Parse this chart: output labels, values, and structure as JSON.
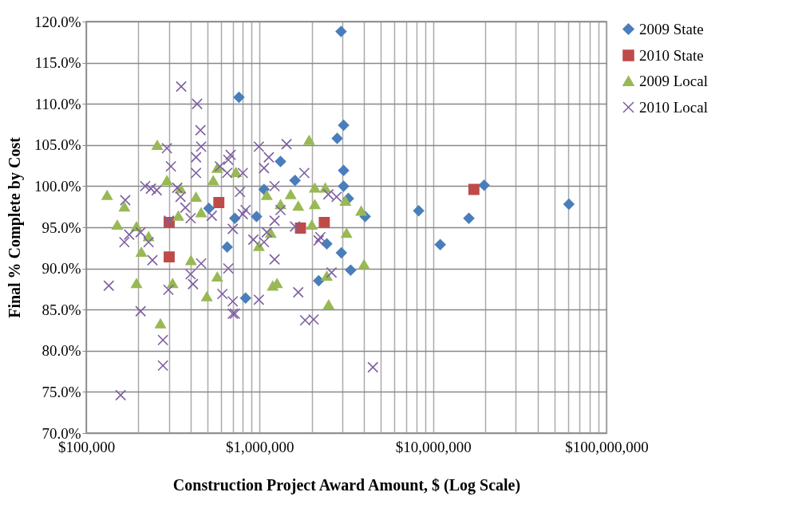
{
  "chart_data": {
    "type": "scatter",
    "xlabel": "Construction Project Award Amount, $ (Log Scale)",
    "ylabel": "Final % Complete by Cost",
    "log": "x",
    "grid": true,
    "legend": "right",
    "xlim": [
      100000,
      100000000
    ],
    "xticks": [
      {
        "value": 100000,
        "label": "$100,000"
      },
      {
        "value": 200000,
        "label": null
      },
      {
        "value": 300000,
        "label": null
      },
      {
        "value": 400000,
        "label": null
      },
      {
        "value": 500000,
        "label": null
      },
      {
        "value": 600000,
        "label": null
      },
      {
        "value": 700000,
        "label": null
      },
      {
        "value": 800000,
        "label": null
      },
      {
        "value": 900000,
        "label": null
      },
      {
        "value": 1000000,
        "label": "$1,000,000"
      },
      {
        "value": 2000000,
        "label": null
      },
      {
        "value": 3000000,
        "label": null
      },
      {
        "value": 4000000,
        "label": null
      },
      {
        "value": 5000000,
        "label": null
      },
      {
        "value": 6000000,
        "label": null
      },
      {
        "value": 7000000,
        "label": null
      },
      {
        "value": 8000000,
        "label": null
      },
      {
        "value": 9000000,
        "label": null
      },
      {
        "value": 10000000,
        "label": "$10,000,000"
      },
      {
        "value": 20000000,
        "label": null
      },
      {
        "value": 30000000,
        "label": null
      },
      {
        "value": 40000000,
        "label": null
      },
      {
        "value": 50000000,
        "label": null
      },
      {
        "value": 60000000,
        "label": null
      },
      {
        "value": 70000000,
        "label": null
      },
      {
        "value": 80000000,
        "label": null
      },
      {
        "value": 90000000,
        "label": null
      },
      {
        "value": 100000000,
        "label": "$100,000,000"
      }
    ],
    "ylim": [
      70,
      120
    ],
    "yticks": [
      {
        "value": 70,
        "label": "70.0%"
      },
      {
        "value": 75,
        "label": "75.0%"
      },
      {
        "value": 80,
        "label": "80.0%"
      },
      {
        "value": 85,
        "label": "85.0%"
      },
      {
        "value": 90,
        "label": "90.0%"
      },
      {
        "value": 95,
        "label": "95.0%"
      },
      {
        "value": 100,
        "label": "100.0%"
      },
      {
        "value": 105,
        "label": "105.0%"
      },
      {
        "value": 110,
        "label": "110.0%"
      },
      {
        "value": 115,
        "label": "115.0%"
      },
      {
        "value": 120,
        "label": "120.0%"
      }
    ],
    "series": [
      {
        "name": "2009 State",
        "color": "#4a7ebb",
        "marker": "diamond",
        "x": [
          2950000,
          760000,
          3050000,
          2800000,
          3050000,
          3050000,
          3250000,
          4060000,
          8260000,
          16100000,
          11000000,
          19700000,
          60700000,
          1320000,
          1600000,
          960000,
          1060000,
          830000,
          2190000,
          3350000,
          2960000,
          2440000,
          510000,
          650000,
          720000
        ],
        "values": [
          118.8,
          110.8,
          107.4,
          105.8,
          101.9,
          100.0,
          98.5,
          96.3,
          97.0,
          96.1,
          92.9,
          100.1,
          97.8,
          103.0,
          100.7,
          96.3,
          99.6,
          86.4,
          88.5,
          89.8,
          91.9,
          93.0,
          97.3,
          92.6,
          96.1
        ]
      },
      {
        "name": "2010 State",
        "color": "#be4b48",
        "marker": "square",
        "x": [
          17200000,
          2360000,
          1720000,
          582000,
          301000,
          301000
        ],
        "values": [
          99.6,
          95.6,
          94.9,
          98.0,
          95.6,
          91.4
        ]
      },
      {
        "name": "2009 Local",
        "color": "#98b954",
        "marker": "triangle",
        "x": [
          132000,
          151000,
          166000,
          208000,
          195000,
          315000,
          268000,
          402000,
          496000,
          570000,
          257000,
          292000,
          350000,
          430000,
          570000,
          540000,
          730000,
          460000,
          340000,
          229000,
          195000,
          1930000,
          2080000,
          2390000,
          3120000,
          3850000,
          2080000,
          1510000,
          1670000,
          1100000,
          1320000,
          2000000,
          3170000,
          1160000,
          1190000,
          1260000,
          2440000,
          4000000,
          2500000,
          990000
        ],
        "values": [
          98.9,
          95.3,
          97.5,
          92.0,
          88.2,
          88.2,
          83.3,
          91.0,
          86.6,
          89.0,
          105.0,
          100.7,
          99.7,
          98.7,
          102.2,
          100.7,
          101.7,
          96.8,
          96.4,
          93.9,
          95.1,
          105.6,
          99.8,
          99.8,
          98.2,
          97.0,
          97.8,
          99.0,
          97.6,
          98.9,
          97.8,
          95.3,
          94.3,
          94.3,
          87.9,
          88.2,
          89.1,
          90.5,
          85.6,
          92.7
        ]
      },
      {
        "name": "2010 Local",
        "color": "#7d5fa0",
        "marker": "cross",
        "x": [
          353000,
          436000,
          456000,
          292000,
          460000,
          430000,
          308000,
          430000,
          219000,
          236000,
          255000,
          168000,
          335000,
          350000,
          660000,
          650000,
          590000,
          206000,
          177000,
          373000,
          300000,
          400000,
          530000,
          229000,
          135000,
          206000,
          277000,
          277000,
          158000,
          298000,
          241000,
          166000,
          413000,
          400000,
          610000,
          700000,
          460000,
          660000,
          990000,
          1430000,
          1810000,
          2490000,
          2780000,
          680000,
          1130000,
          1060000,
          1220000,
          800000,
          770000,
          830000,
          1320000,
          800000,
          1220000,
          1600000,
          1100000,
          700000,
          2240000,
          920000,
          1060000,
          1220000,
          990000,
          1670000,
          1830000,
          2050000,
          2600000,
          4500000,
          720000,
          700000,
          2190000
        ],
        "values": [
          112.1,
          110.0,
          106.8,
          104.6,
          104.8,
          103.5,
          102.4,
          101.6,
          100.0,
          99.7,
          99.5,
          98.3,
          99.8,
          98.7,
          103.2,
          101.6,
          102.4,
          94.4,
          94.1,
          97.4,
          95.8,
          96.1,
          96.4,
          93.2,
          87.9,
          84.8,
          81.3,
          78.2,
          74.6,
          87.4,
          91.0,
          93.2,
          88.1,
          89.3,
          86.9,
          84.5,
          90.6,
          90.0,
          104.8,
          105.1,
          101.6,
          99.0,
          98.7,
          103.8,
          103.5,
          102.2,
          100.0,
          101.6,
          99.3,
          97.1,
          97.1,
          96.6,
          95.8,
          95.1,
          94.4,
          94.8,
          93.8,
          93.5,
          93.2,
          91.1,
          86.2,
          87.1,
          83.7,
          83.8,
          89.5,
          78.0,
          84.5,
          86.0,
          93.4
        ]
      }
    ]
  }
}
